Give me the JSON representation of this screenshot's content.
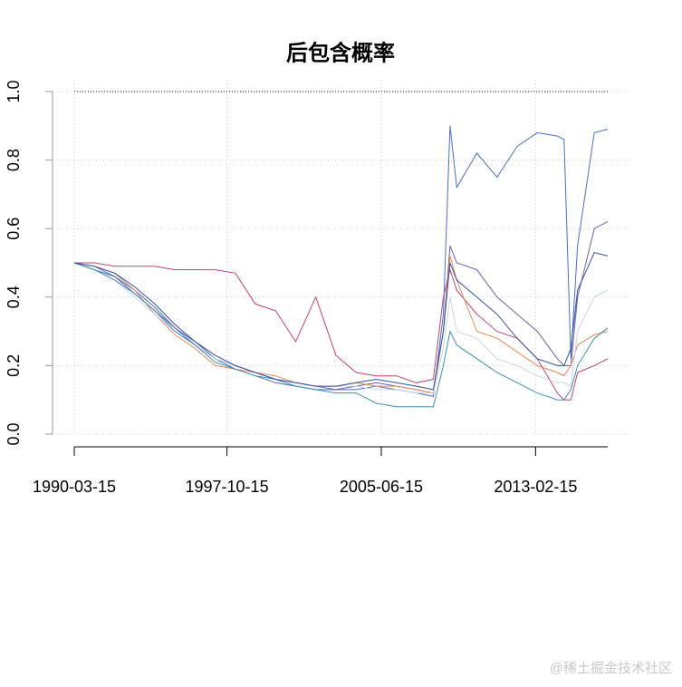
{
  "chart_data": {
    "type": "line",
    "title": "后包含概率",
    "x": [
      "1990-03-15",
      "1991-03-15",
      "1992-03-15",
      "1993-03-15",
      "1994-03-15",
      "1995-03-15",
      "1996-03-15",
      "1997-03-15",
      "1998-03-15",
      "1999-03-15",
      "2000-03-15",
      "2001-03-15",
      "2002-03-15",
      "2003-03-15",
      "2004-03-15",
      "2005-03-15",
      "2006-03-15",
      "2007-03-15",
      "2008-01-15",
      "2008-07-15",
      "2008-11-15",
      "2009-03-15",
      "2010-03-15",
      "2011-03-15",
      "2012-03-15",
      "2013-03-15",
      "2014-03-15",
      "2014-07-15",
      "2014-11-15",
      "2015-03-15",
      "2016-01-15",
      "2016-09-15"
    ],
    "series": [
      {
        "color": "#4a6fc4",
        "values": [
          0.5,
          0.48,
          0.46,
          0.42,
          0.37,
          0.31,
          0.26,
          0.22,
          0.19,
          0.17,
          0.15,
          0.14,
          0.13,
          0.13,
          0.13,
          0.14,
          0.13,
          0.12,
          0.11,
          0.35,
          0.9,
          0.72,
          0.82,
          0.75,
          0.84,
          0.88,
          0.87,
          0.86,
          0.22,
          0.55,
          0.88,
          0.89
        ]
      },
      {
        "color": "#6a5fb0",
        "values": [
          0.5,
          0.49,
          0.46,
          0.41,
          0.36,
          0.31,
          0.27,
          0.22,
          0.2,
          0.18,
          0.16,
          0.15,
          0.14,
          0.13,
          0.14,
          0.15,
          0.14,
          0.13,
          0.12,
          0.3,
          0.55,
          0.5,
          0.48,
          0.4,
          0.35,
          0.3,
          0.22,
          0.2,
          0.2,
          0.4,
          0.6,
          0.62
        ]
      },
      {
        "color": "#c2406e",
        "values": [
          0.5,
          0.5,
          0.49,
          0.49,
          0.49,
          0.48,
          0.48,
          0.48,
          0.47,
          0.38,
          0.36,
          0.27,
          0.4,
          0.23,
          0.18,
          0.17,
          0.17,
          0.15,
          0.16,
          0.4,
          0.48,
          0.42,
          0.35,
          0.3,
          0.28,
          0.22,
          0.12,
          0.1,
          0.1,
          0.18,
          0.2,
          0.22
        ]
      },
      {
        "color": "#e58a5a",
        "values": [
          0.5,
          0.49,
          0.47,
          0.42,
          0.35,
          0.29,
          0.25,
          0.2,
          0.19,
          0.18,
          0.17,
          0.15,
          0.14,
          0.14,
          0.15,
          0.14,
          0.14,
          0.13,
          0.12,
          0.3,
          0.52,
          0.45,
          0.3,
          0.28,
          0.24,
          0.2,
          0.18,
          0.17,
          0.2,
          0.26,
          0.29,
          0.3
        ]
      },
      {
        "color": "#c8d4e8",
        "values": [
          0.5,
          0.48,
          0.45,
          0.4,
          0.35,
          0.3,
          0.26,
          0.22,
          0.2,
          0.18,
          0.16,
          0.15,
          0.14,
          0.14,
          0.14,
          0.13,
          0.13,
          0.12,
          0.12,
          0.25,
          0.4,
          0.3,
          0.28,
          0.22,
          0.2,
          0.17,
          0.15,
          0.15,
          0.14,
          0.3,
          0.4,
          0.42
        ]
      },
      {
        "color": "#3a8fb0",
        "values": [
          0.5,
          0.48,
          0.45,
          0.41,
          0.36,
          0.3,
          0.26,
          0.21,
          0.19,
          0.17,
          0.16,
          0.14,
          0.13,
          0.12,
          0.12,
          0.09,
          0.08,
          0.08,
          0.08,
          0.2,
          0.3,
          0.26,
          0.22,
          0.18,
          0.15,
          0.12,
          0.1,
          0.1,
          0.13,
          0.2,
          0.28,
          0.31
        ]
      },
      {
        "color": "#3050a0",
        "values": [
          0.5,
          0.49,
          0.47,
          0.43,
          0.38,
          0.32,
          0.27,
          0.23,
          0.2,
          0.18,
          0.16,
          0.15,
          0.14,
          0.14,
          0.15,
          0.16,
          0.15,
          0.14,
          0.13,
          0.3,
          0.5,
          0.45,
          0.4,
          0.35,
          0.28,
          0.22,
          0.2,
          0.2,
          0.25,
          0.42,
          0.53,
          0.52
        ]
      }
    ],
    "hline": 1,
    "xlim": [
      "1990-03-15",
      "2016-09-15"
    ],
    "xticks": [
      "1990-03-15",
      "1997-10-15",
      "2005-06-15",
      "2013-02-15"
    ],
    "ylim": [
      0,
      1
    ],
    "yticks": [
      {
        "value": 0,
        "label": "0.0"
      },
      {
        "value": 0.2,
        "label": "0.2"
      },
      {
        "value": 0.4,
        "label": "0.4"
      },
      {
        "value": 0.6,
        "label": "0.6"
      },
      {
        "value": 0.8,
        "label": "0.8"
      },
      {
        "value": 1,
        "label": "1.0"
      }
    ],
    "grid": true
  },
  "watermark": "@稀土掘金技术社区"
}
